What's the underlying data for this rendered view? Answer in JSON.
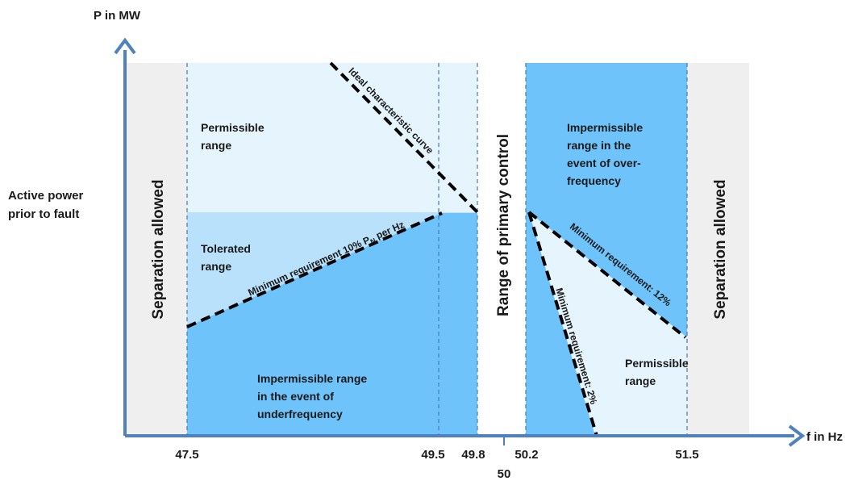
{
  "axes": {
    "y_title": "P in MW",
    "x_title": "f in Hz",
    "y_label_line1": "Active power",
    "y_label_line2": "prior to fault",
    "x_ticks": [
      "47.5",
      "49.5",
      "49.8",
      "50",
      "50.2",
      "51.5"
    ]
  },
  "regions": {
    "separation_left": "Separation allowed",
    "separation_right": "Separation allowed",
    "primary_control": "Range of primary control",
    "permissible_left": [
      "Permissible",
      "range"
    ],
    "tolerated": [
      "Tolerated",
      "range"
    ],
    "impermissible_under": [
      "Impermissible range",
      "in the event of",
      "underfrequency"
    ],
    "impermissible_over": [
      "Impermissible",
      "range in the",
      "event of over-",
      "frequency"
    ],
    "permissible_right": [
      "Permissible",
      "range"
    ]
  },
  "curves": {
    "ideal": "Ideal characteristic curve",
    "min_10_prefix": "Minimum requirement 10% P",
    "min_10_sub": "N",
    "min_10_suffix": " per Hz",
    "min_12": "Minimum requirement: 12%",
    "min_2": "Minimum requirement: 2%"
  },
  "colors": {
    "separation_bg": "#efefef",
    "light_blue": "#e5f4fd",
    "mid_blue": "#b9e1fb",
    "dark_blue": "#6fc3fb",
    "axis": "#4f81bd",
    "guide": "#4f81bd",
    "curve": "#000000"
  }
}
